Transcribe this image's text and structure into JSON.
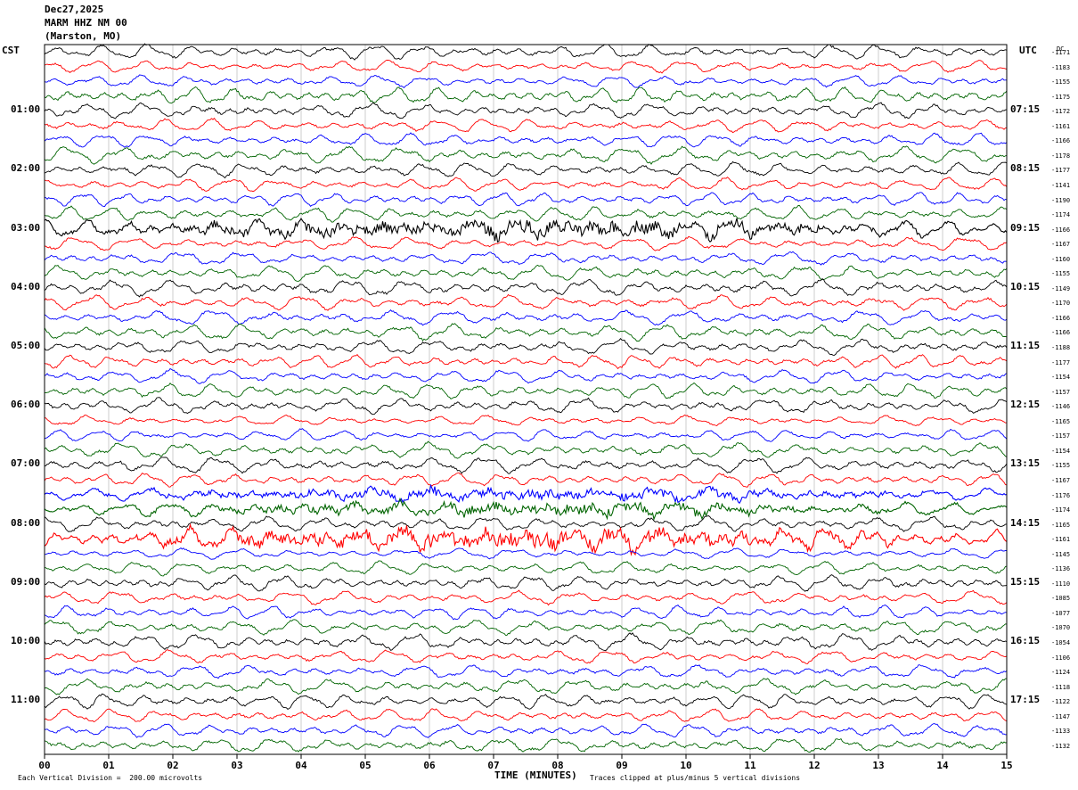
{
  "header": {
    "date": "Dec27,2025",
    "station": "MARM HHZ NM 00",
    "location": "(Marston, MO)"
  },
  "left_axis_label": "CST",
  "right_axis_label": "UTC",
  "dc_label": "DC",
  "x_axis_label": "TIME (MINUTES)",
  "footer": {
    "scale_note": "Each Vertical Division =  200.00 microvolts",
    "clip_note": "Traces clipped at plus/minus 5 vertical divisions"
  },
  "colors": {
    "trace_cycle": [
      "#000000",
      "#ff0000",
      "#0000ff",
      "#006400"
    ],
    "grid": "#aaaaaa",
    "frame": "#000000"
  },
  "chart_data": {
    "type": "helicorder",
    "x": [
      0,
      1,
      2,
      3,
      4,
      5,
      6,
      7,
      8,
      9,
      10,
      11,
      12,
      13,
      14,
      15
    ],
    "x_tick_labels": [
      "00",
      "01",
      "02",
      "03",
      "04",
      "05",
      "06",
      "07",
      "08",
      "09",
      "10",
      "11",
      "12",
      "13",
      "14",
      "15"
    ],
    "xlim": [
      0,
      15
    ],
    "minutes_per_line": 15,
    "line_count": 48,
    "left_time_labels": [
      {
        "line": 4,
        "label": "01:00"
      },
      {
        "line": 8,
        "label": "02:00"
      },
      {
        "line": 12,
        "label": "03:00"
      },
      {
        "line": 16,
        "label": "04:00"
      },
      {
        "line": 20,
        "label": "05:00"
      },
      {
        "line": 24,
        "label": "06:00"
      },
      {
        "line": 28,
        "label": "07:00"
      },
      {
        "line": 32,
        "label": "08:00"
      },
      {
        "line": 36,
        "label": "09:00"
      },
      {
        "line": 40,
        "label": "10:00"
      },
      {
        "line": 44,
        "label": "11:00"
      }
    ],
    "right_time_labels": [
      {
        "line": 4,
        "label": "07:15"
      },
      {
        "line": 8,
        "label": "08:15"
      },
      {
        "line": 12,
        "label": "09:15"
      },
      {
        "line": 16,
        "label": "10:15"
      },
      {
        "line": 20,
        "label": "11:15"
      },
      {
        "line": 24,
        "label": "12:15"
      },
      {
        "line": 28,
        "label": "13:15"
      },
      {
        "line": 32,
        "label": "14:15"
      },
      {
        "line": 36,
        "label": "15:15"
      },
      {
        "line": 40,
        "label": "16:15"
      },
      {
        "line": 44,
        "label": "17:15"
      }
    ],
    "dc_offsets": [
      -1171,
      -1183,
      -1155,
      -1175,
      -1172,
      -1161,
      -1166,
      -1178,
      -1177,
      -1141,
      -1190,
      -1174,
      -1166,
      -1167,
      -1160,
      -1155,
      -1149,
      -1170,
      -1166,
      -1166,
      -1188,
      -1177,
      -1154,
      -1157,
      -1146,
      -1165,
      -1157,
      -1154,
      -1155,
      -1167,
      -1176,
      -1174,
      -1165,
      -1161,
      -1145,
      -1136,
      -1110,
      -1085,
      -1077,
      -1070,
      -1054,
      -1106,
      -1124,
      -1118,
      -1122,
      -1147,
      -1133,
      -1132
    ],
    "trace_amplitude": [
      1.0,
      0.8,
      0.8,
      1.1,
      1.0,
      0.9,
      0.9,
      1.1,
      1.0,
      0.9,
      0.9,
      1.0,
      1.2,
      0.9,
      0.9,
      1.0,
      1.1,
      1.0,
      1.0,
      1.1,
      1.0,
      0.9,
      0.9,
      1.0,
      1.0,
      0.7,
      0.8,
      1.0,
      1.1,
      0.9,
      0.8,
      0.9,
      1.0,
      1.4,
      0.7,
      0.9,
      1.0,
      0.9,
      0.9,
      1.0,
      1.1,
      0.9,
      0.9,
      1.0,
      1.0,
      0.9,
      0.9,
      1.0
    ],
    "noisy_lines": [
      12,
      30,
      31,
      33
    ]
  }
}
